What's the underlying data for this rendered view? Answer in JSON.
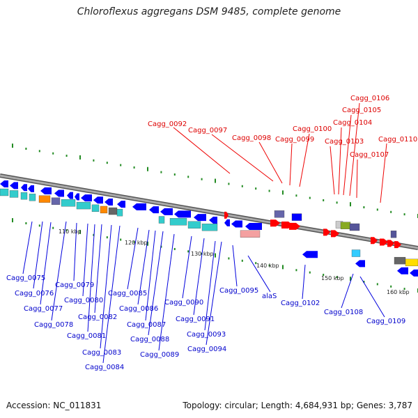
{
  "title": "Chloroflexus aggregans DSM 9485, complete genome",
  "footer": {
    "accession": "Accession: NC_011831",
    "summary": "Topology: circular; Length: 4,684,931 bp; Genes: 3,787"
  },
  "scale_labels": [
    "110 kbp",
    "120 kbp",
    "130 kbp",
    "140 kbp",
    "150 kbp",
    "160 kbp"
  ],
  "gene_labels_top": [
    "Cagg_0092",
    "Cagg_0097",
    "Cagg_0098",
    "Cagg_0099",
    "Cagg_0100",
    "Cagg_0103",
    "Cagg_0104",
    "Cagg_0105",
    "Cagg_0106",
    "Cagg_0107",
    "Cagg_0110"
  ],
  "gene_labels_bottom": [
    "Cagg_0075",
    "Cagg_0076",
    "Cagg_0077",
    "Cagg_0078",
    "Cagg_0079",
    "Cagg_0080",
    "Cagg_0081",
    "Cagg_0082",
    "Cagg_0083",
    "Cagg_0084",
    "Cagg_0085",
    "Cagg_0086",
    "Cagg_0087",
    "Cagg_0088",
    "Cagg_0089",
    "Cagg_0090",
    "Cagg_0091",
    "Cagg_0093",
    "Cagg_0094",
    "Cagg_0095",
    "alaS",
    "Cagg_0102",
    "Cagg_0108",
    "Cagg_0109"
  ],
  "colors": {
    "forward_label": "#dd0000",
    "reverse_label": "#0000cc",
    "forward_gene": "#ff0000",
    "reverse_gene": "#0000ff",
    "backbone": "#888888",
    "tick": "#228b22"
  }
}
